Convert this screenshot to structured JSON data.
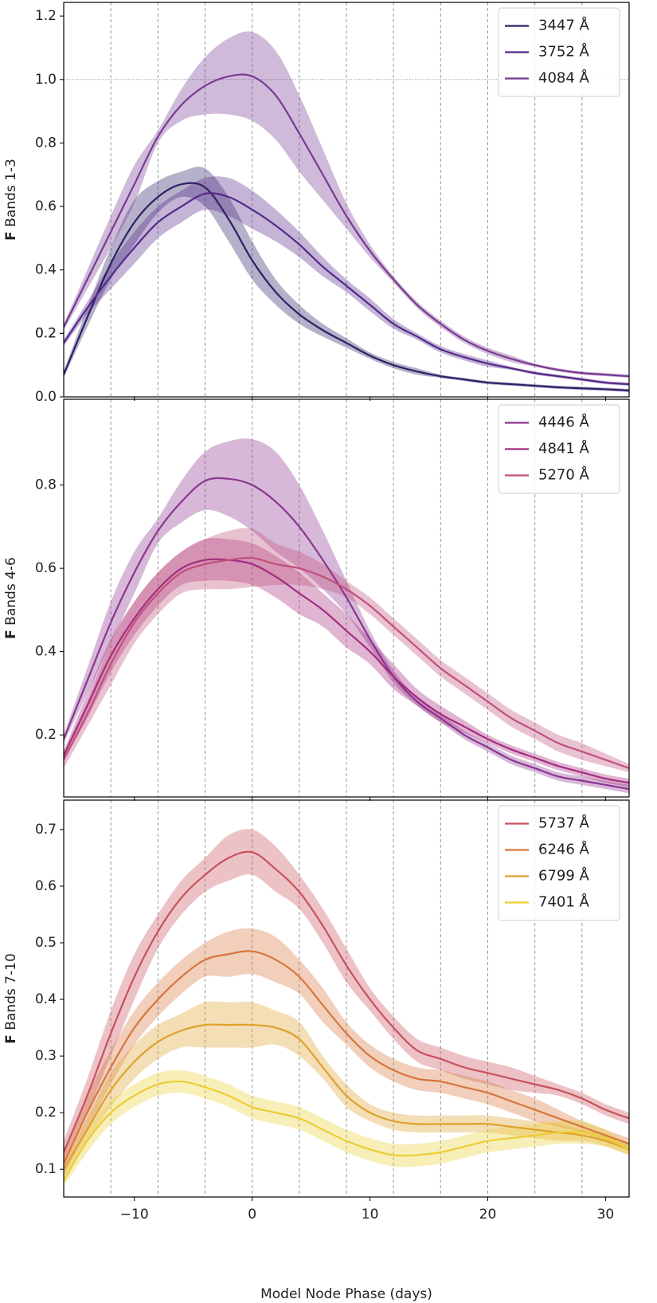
{
  "chart_data": [
    {
      "type": "line",
      "ylabel": {
        "symbol": "F",
        "text": "Bands 1-3"
      },
      "x": [
        -16,
        -14,
        -12,
        -10,
        -8,
        -6,
        -4,
        -2,
        0,
        2,
        4,
        6,
        8,
        10,
        12,
        14,
        16,
        18,
        20,
        22,
        24,
        26,
        28,
        30,
        32
      ],
      "xlim": [
        -16,
        32
      ],
      "xticks": [
        -10,
        0,
        10,
        20,
        30
      ],
      "ylim": [
        0,
        1.243
      ],
      "yticks": [
        {
          "value": 0,
          "label": "0.0"
        },
        0.2,
        0.4,
        0.6,
        0.8,
        {
          "value": 1,
          "label": "1.0"
        },
        0.2,
        1.2
      ],
      "vlines": [
        -12,
        -8,
        -4,
        0,
        4,
        8,
        12,
        16,
        20,
        24,
        28
      ],
      "hlines": [
        1.0
      ],
      "legend": "upper right",
      "series": [
        {
          "name": "3447 Å",
          "color": "#2f1f66",
          "values": [
            0.07,
            0.25,
            0.42,
            0.55,
            0.63,
            0.67,
            0.66,
            0.56,
            0.43,
            0.33,
            0.26,
            0.21,
            0.17,
            0.13,
            0.1,
            0.08,
            0.065,
            0.055,
            0.045,
            0.04,
            0.035,
            0.03,
            0.027,
            0.024,
            0.02
          ],
          "errors": [
            0.01,
            0.03,
            0.05,
            0.07,
            0.05,
            0.04,
            0.06,
            0.07,
            0.06,
            0.04,
            0.03,
            0.02,
            0.015,
            0.01,
            0.01,
            0.01,
            0.005,
            0.005,
            0.005,
            0.005,
            0.005,
            0.005,
            0.005,
            0.005,
            0.005
          ]
        },
        {
          "name": "3752 Å",
          "color": "#55298a",
          "values": [
            0.17,
            0.28,
            0.38,
            0.47,
            0.55,
            0.6,
            0.64,
            0.63,
            0.59,
            0.54,
            0.48,
            0.41,
            0.35,
            0.29,
            0.23,
            0.19,
            0.15,
            0.125,
            0.105,
            0.09,
            0.075,
            0.065,
            0.055,
            0.045,
            0.04
          ],
          "errors": [
            0.01,
            0.02,
            0.04,
            0.05,
            0.05,
            0.05,
            0.05,
            0.06,
            0.06,
            0.05,
            0.04,
            0.03,
            0.02,
            0.02,
            0.015,
            0.01,
            0.01,
            0.01,
            0.01,
            0.005,
            0.005,
            0.005,
            0.005,
            0.005,
            0.005
          ]
        },
        {
          "name": "4084 Å",
          "color": "#773a92",
          "values": [
            0.22,
            0.37,
            0.52,
            0.67,
            0.82,
            0.92,
            0.98,
            1.01,
            1.01,
            0.95,
            0.83,
            0.7,
            0.57,
            0.46,
            0.37,
            0.29,
            0.23,
            0.18,
            0.145,
            0.12,
            0.1,
            0.085,
            0.075,
            0.07,
            0.065
          ],
          "errors": [
            0.01,
            0.03,
            0.05,
            0.06,
            0.02,
            0.05,
            0.09,
            0.12,
            0.14,
            0.14,
            0.12,
            0.08,
            0.04,
            0.02,
            0.01,
            0.01,
            0.01,
            0.01,
            0.01,
            0.01,
            0.005,
            0.005,
            0.005,
            0.005,
            0.005
          ]
        }
      ]
    },
    {
      "type": "line",
      "ylabel": {
        "symbol": "F",
        "text": "Bands 4-6"
      },
      "x": [
        -16,
        -14,
        -12,
        -10,
        -8,
        -6,
        -4,
        -2,
        0,
        2,
        4,
        6,
        8,
        10,
        12,
        14,
        16,
        18,
        20,
        22,
        24,
        26,
        28,
        30,
        32
      ],
      "xlim": [
        -16,
        32
      ],
      "xticks": [
        -10,
        0,
        10,
        20,
        30
      ],
      "ylim": [
        0.051,
        1.006
      ],
      "yticks": [
        0.2,
        0.4,
        0.6,
        0.8
      ],
      "vlines": [
        -12,
        -8,
        -4,
        0,
        4,
        8,
        12,
        16,
        20,
        24,
        28
      ],
      "legend": "upper right",
      "series": [
        {
          "name": "4446 Å",
          "color": "#8b3590",
          "values": [
            0.19,
            0.33,
            0.47,
            0.59,
            0.69,
            0.76,
            0.81,
            0.815,
            0.8,
            0.76,
            0.7,
            0.62,
            0.53,
            0.43,
            0.34,
            0.28,
            0.24,
            0.2,
            0.17,
            0.14,
            0.12,
            0.1,
            0.09,
            0.08,
            0.07
          ],
          "errors": [
            0.01,
            0.03,
            0.05,
            0.05,
            0.03,
            0.05,
            0.07,
            0.09,
            0.11,
            0.12,
            0.1,
            0.07,
            0.04,
            0.02,
            0.015,
            0.01,
            0.01,
            0.01,
            0.01,
            0.01,
            0.01,
            0.01,
            0.01,
            0.01,
            0.01
          ]
        },
        {
          "name": "4841 Å",
          "color": "#a52c7f",
          "values": [
            0.15,
            0.27,
            0.39,
            0.48,
            0.55,
            0.6,
            0.62,
            0.62,
            0.61,
            0.58,
            0.54,
            0.5,
            0.45,
            0.4,
            0.34,
            0.29,
            0.25,
            0.22,
            0.19,
            0.165,
            0.145,
            0.125,
            0.11,
            0.095,
            0.085
          ],
          "errors": [
            0.01,
            0.03,
            0.04,
            0.04,
            0.04,
            0.04,
            0.05,
            0.05,
            0.05,
            0.05,
            0.05,
            0.04,
            0.04,
            0.03,
            0.03,
            0.02,
            0.02,
            0.015,
            0.01,
            0.01,
            0.01,
            0.01,
            0.01,
            0.01,
            0.01
          ]
        },
        {
          "name": "5270 Å",
          "color": "#c14f7c",
          "values": [
            0.14,
            0.25,
            0.37,
            0.47,
            0.54,
            0.59,
            0.61,
            0.62,
            0.625,
            0.61,
            0.6,
            0.58,
            0.55,
            0.51,
            0.46,
            0.41,
            0.36,
            0.32,
            0.28,
            0.24,
            0.21,
            0.18,
            0.16,
            0.14,
            0.12
          ],
          "errors": [
            0.02,
            0.03,
            0.05,
            0.05,
            0.05,
            0.05,
            0.06,
            0.07,
            0.07,
            0.05,
            0.04,
            0.03,
            0.02,
            0.02,
            0.02,
            0.02,
            0.02,
            0.02,
            0.02,
            0.02,
            0.02,
            0.02,
            0.02,
            0.015,
            0.01
          ]
        }
      ]
    },
    {
      "type": "line",
      "ylabel": {
        "symbol": "F",
        "text": "Bands 7-10"
      },
      "xlabel": "Model Node Phase (days)",
      "x": [
        -16,
        -14,
        -12,
        -10,
        -8,
        -6,
        -4,
        -2,
        0,
        2,
        4,
        6,
        8,
        10,
        12,
        14,
        16,
        18,
        20,
        22,
        24,
        26,
        28,
        30,
        32
      ],
      "xlim": [
        -16,
        32
      ],
      "xticks": [
        {
          "value": -10,
          "label": "−10"
        },
        0,
        10,
        20,
        30
      ],
      "ylim": [
        0.051,
        0.752
      ],
      "yticks": [
        0.1,
        0.2,
        0.3,
        0.4,
        0.5,
        0.6,
        0.7
      ],
      "vlines": [
        -12,
        -8,
        -4,
        0,
        4,
        8,
        12,
        16,
        20,
        24,
        28
      ],
      "legend": "upper right",
      "series": [
        {
          "name": "5737 Å",
          "color": "#c9515c",
          "values": [
            0.13,
            0.23,
            0.34,
            0.44,
            0.52,
            0.58,
            0.62,
            0.65,
            0.66,
            0.63,
            0.59,
            0.53,
            0.46,
            0.4,
            0.35,
            0.31,
            0.295,
            0.28,
            0.27,
            0.26,
            0.25,
            0.24,
            0.225,
            0.205,
            0.19
          ],
          "errors": [
            0.02,
            0.03,
            0.04,
            0.04,
            0.03,
            0.03,
            0.03,
            0.04,
            0.04,
            0.04,
            0.03,
            0.03,
            0.03,
            0.02,
            0.02,
            0.02,
            0.02,
            0.02,
            0.02,
            0.02,
            0.015,
            0.01,
            0.01,
            0.01,
            0.01
          ]
        },
        {
          "name": "6246 Å",
          "color": "#d7763c",
          "values": [
            0.11,
            0.2,
            0.28,
            0.35,
            0.4,
            0.44,
            0.47,
            0.48,
            0.485,
            0.47,
            0.44,
            0.39,
            0.34,
            0.3,
            0.275,
            0.26,
            0.255,
            0.245,
            0.235,
            0.22,
            0.205,
            0.19,
            0.175,
            0.16,
            0.145
          ],
          "errors": [
            0.02,
            0.03,
            0.03,
            0.03,
            0.03,
            0.03,
            0.03,
            0.04,
            0.04,
            0.04,
            0.03,
            0.03,
            0.02,
            0.02,
            0.02,
            0.02,
            0.02,
            0.02,
            0.02,
            0.02,
            0.02,
            0.015,
            0.01,
            0.01,
            0.01
          ]
        },
        {
          "name": "6799 Å",
          "color": "#dea12c",
          "values": [
            0.1,
            0.17,
            0.24,
            0.29,
            0.325,
            0.345,
            0.355,
            0.355,
            0.355,
            0.35,
            0.33,
            0.28,
            0.23,
            0.2,
            0.185,
            0.18,
            0.18,
            0.18,
            0.18,
            0.175,
            0.17,
            0.165,
            0.16,
            0.15,
            0.135
          ],
          "errors": [
            0.015,
            0.02,
            0.03,
            0.03,
            0.03,
            0.03,
            0.04,
            0.04,
            0.04,
            0.03,
            0.03,
            0.02,
            0.02,
            0.015,
            0.015,
            0.015,
            0.015,
            0.015,
            0.015,
            0.015,
            0.015,
            0.015,
            0.01,
            0.01,
            0.01
          ]
        },
        {
          "name": "7401 Å",
          "color": "#ebcd34",
          "values": [
            0.08,
            0.15,
            0.2,
            0.23,
            0.25,
            0.255,
            0.245,
            0.23,
            0.21,
            0.2,
            0.19,
            0.17,
            0.15,
            0.135,
            0.125,
            0.125,
            0.13,
            0.14,
            0.15,
            0.155,
            0.16,
            0.165,
            0.165,
            0.155,
            0.135
          ],
          "errors": [
            0.01,
            0.02,
            0.02,
            0.02,
            0.02,
            0.02,
            0.02,
            0.02,
            0.02,
            0.02,
            0.02,
            0.02,
            0.02,
            0.02,
            0.02,
            0.02,
            0.02,
            0.02,
            0.02,
            0.02,
            0.02,
            0.02,
            0.02,
            0.015,
            0.01
          ]
        }
      ]
    }
  ]
}
